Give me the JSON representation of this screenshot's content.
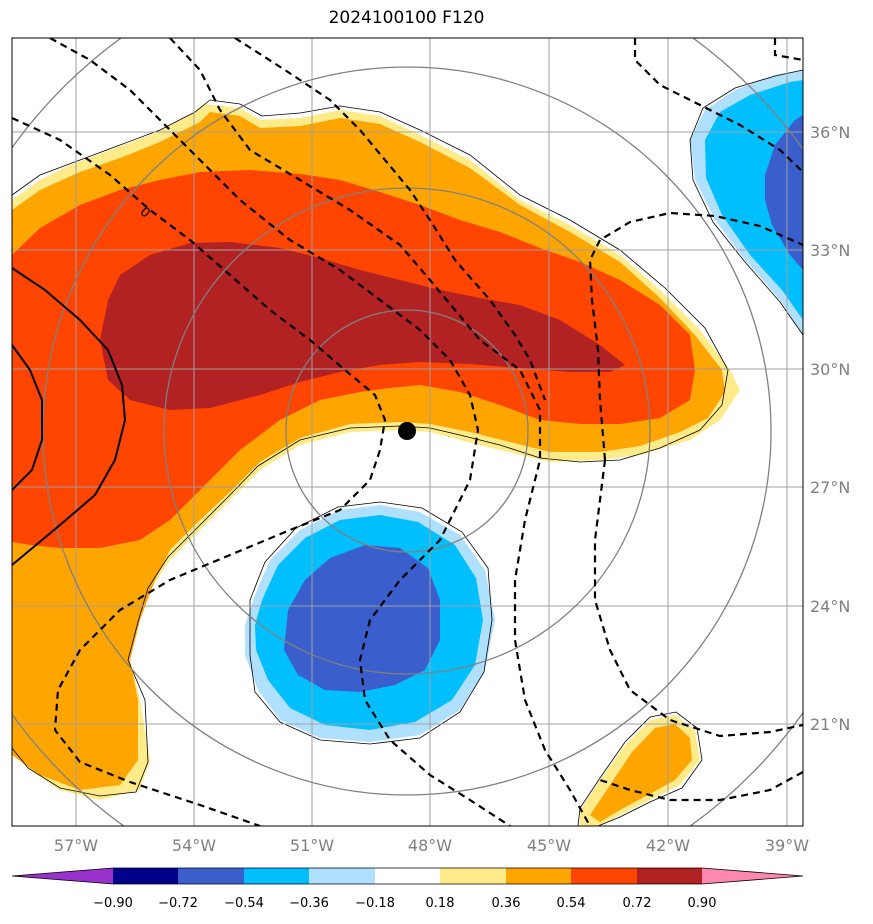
{
  "title": "2024100100 F120",
  "colors": {
    "light_yellow": "#ffeb8a",
    "orange": "#ffa500",
    "red_orange": "#ff4500",
    "dark_red": "#b22222",
    "light_blue": "#b0e0ff",
    "cyan": "#00bfff",
    "royal_blue": "#3a5fcd",
    "grid": "#a0a0a0",
    "circles": "#808080"
  },
  "map": {
    "lon_labels": [
      "57°W",
      "54°W",
      "51°W",
      "48°W",
      "45°W",
      "42°W",
      "39°W"
    ],
    "lat_labels": [
      "36°N",
      "33°N",
      "30°N",
      "27°N",
      "24°N",
      "21°N"
    ],
    "contour_label": "0",
    "storm_center": {
      "lon": -48.0,
      "lat": 28.4
    }
  },
  "colorbar": {
    "ticks": [
      "−0.90",
      "−0.72",
      "−0.54",
      "−0.36",
      "−0.18",
      "0.18",
      "0.36",
      "0.54",
      "0.72",
      "0.90"
    ],
    "colors": [
      "#9932cc",
      "#00008b",
      "#3a5fcd",
      "#00bfff",
      "#b0e0ff",
      "#ffffff",
      "#ffeb8a",
      "#ffa500",
      "#ff4500",
      "#b22222",
      "#ff88b0"
    ]
  }
}
